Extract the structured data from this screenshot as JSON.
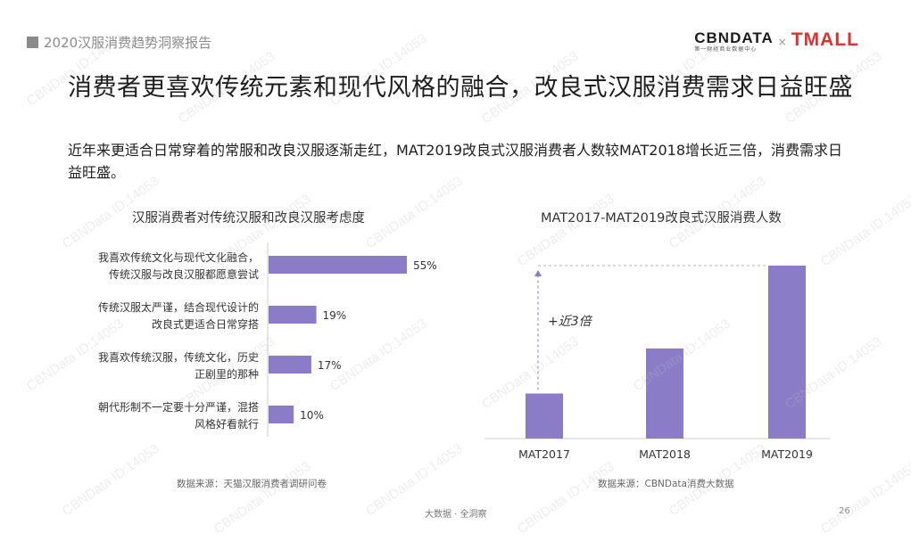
{
  "header": {
    "report_tag": "2020汉服消费趋势洞察报告",
    "logo_cbn": "CBNDATA",
    "logo_cbn_sub": "第一财经商业数据中心",
    "logo_x": "×",
    "logo_tmall": "TMALL"
  },
  "headline": "消费者更喜欢传统元素和现代风格的融合，改良式汉服消费需求日益旺盛",
  "subtext": "近年来更适合日常穿着的常服和改良汉服逐渐走红，MAT2019改良式汉服消费者人数较MAT2018增长近三倍，消费需求日益旺盛。",
  "colors": {
    "bar": "#8b7cc8",
    "axis": "#cccccc",
    "arrow": "#8b7cc8"
  },
  "chart_data": [
    {
      "type": "bar",
      "orientation": "horizontal",
      "title": "汉服消费者对传统汉服和改良汉服考虑度",
      "categories": [
        [
          "我喜欢传统文化与现代文化融合，",
          "传统汉服与改良汉服都愿意尝试"
        ],
        [
          "传统汉服太严谨，结合现代设计的",
          "改良式更适合日常穿搭"
        ],
        [
          "我喜欢传统汉服，传统文化，历史",
          "正剧里的那种"
        ],
        [
          "朝代形制不一定要十分严谨，混搭",
          "风格好看就行"
        ]
      ],
      "values": [
        55,
        19,
        17,
        10
      ],
      "value_labels": [
        "55%",
        "19%",
        "17%",
        "10%"
      ],
      "unit": "%",
      "xlim": [
        0,
        100
      ],
      "source": "数据来源：天猫汉服消费者调研问卷"
    },
    {
      "type": "bar",
      "orientation": "vertical",
      "title": "MAT2017-MAT2019改良式汉服消费人数",
      "categories": [
        "MAT2017",
        "MAT2018",
        "MAT2019"
      ],
      "values": [
        25,
        50,
        96
      ],
      "ylim": [
        0,
        100
      ],
      "annotation": "+近3倍",
      "source": "数据来源：CBNData消费大数据"
    }
  ],
  "footer": {
    "text": "大数据 · 全洞察",
    "page": "26"
  },
  "watermark": "CBNData ID:14053"
}
